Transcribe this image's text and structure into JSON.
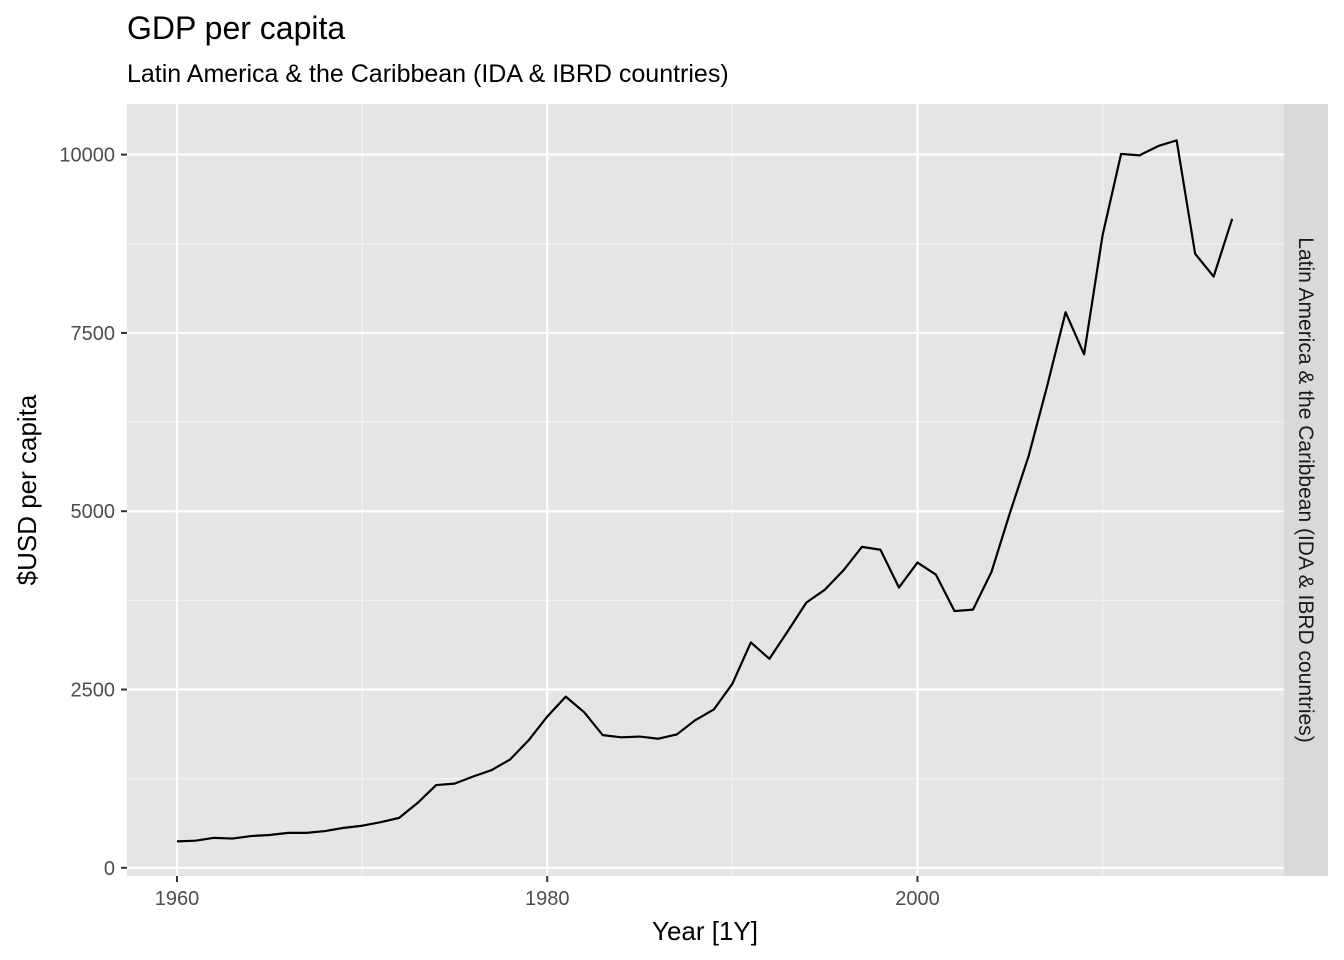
{
  "chart_data": {
    "type": "line",
    "title": "GDP per capita",
    "subtitle": "Latin America & the Caribbean (IDA & IBRD countries)",
    "xlabel": "Year [1Y]",
    "ylabel": "$USD per capita",
    "facet_label": "Latin America & the Caribbean (IDA & IBRD countries)",
    "xlim": [
      1957.3,
      2019.8
    ],
    "ylim": [
      -115,
      10710
    ],
    "x_ticks": [
      1960,
      1980,
      2000
    ],
    "y_ticks": [
      0,
      2500,
      5000,
      7500,
      10000
    ],
    "grid": true,
    "line_color": "#000000",
    "panel_color": "#e5e5e5",
    "strip_color": "#d9d9d9",
    "series": [
      {
        "x": [
          1960,
          1961,
          1962,
          1963,
          1964,
          1965,
          1966,
          1967,
          1968,
          1969,
          1970,
          1971,
          1972,
          1973,
          1974,
          1975,
          1976,
          1977,
          1978,
          1979,
          1980,
          1981,
          1982,
          1983,
          1984,
          1985,
          1986,
          1987,
          1988,
          1989,
          1990,
          1991,
          1992,
          1993,
          1994,
          1995,
          1996,
          1997,
          1998,
          1999,
          2000,
          2001,
          2002,
          2003,
          2004,
          2005,
          2006,
          2007,
          2008,
          2009,
          2010,
          2011,
          2012,
          2013,
          2014,
          2015,
          2016,
          2017
        ],
        "values": [
          370,
          380,
          420,
          410,
          445,
          460,
          490,
          490,
          515,
          560,
          590,
          640,
          700,
          910,
          1160,
          1180,
          1280,
          1370,
          1520,
          1790,
          2120,
          2400,
          2180,
          1860,
          1830,
          1840,
          1810,
          1870,
          2070,
          2220,
          2580,
          3160,
          2930,
          3320,
          3720,
          3900,
          4170,
          4500,
          4460,
          3930,
          4280,
          4110,
          3600,
          3620,
          4150,
          4980,
          5770,
          6750,
          7790,
          7200,
          8870,
          10010,
          9990,
          10120,
          10200,
          8610,
          8290,
          9100
        ]
      }
    ]
  }
}
